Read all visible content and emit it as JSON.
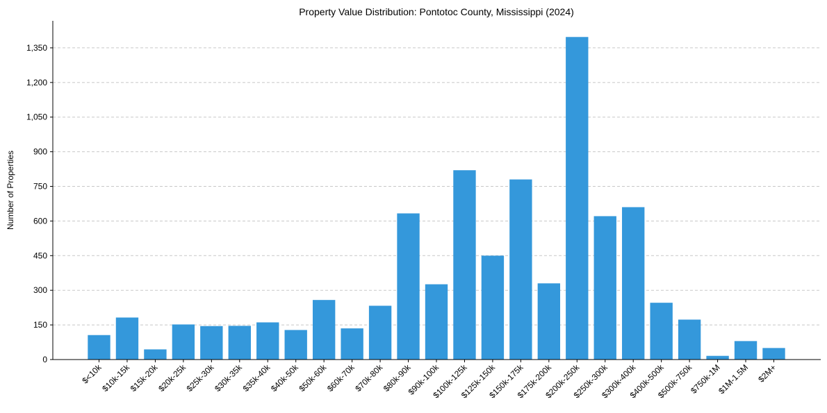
{
  "chart_data": {
    "type": "bar",
    "title": "Property Value Distribution: Pontotoc County, Mississippi (2024)",
    "xlabel": "",
    "ylabel": "Number of Properties",
    "categories": [
      "$<10k",
      "$10k-15k",
      "$15k-20k",
      "$20k-25k",
      "$25k-30k",
      "$30k-35k",
      "$35k-40k",
      "$40k-50k",
      "$50k-60k",
      "$60k-70k",
      "$70k-80k",
      "$80k-90k",
      "$90k-100k",
      "$100k-125k",
      "$125k-150k",
      "$150k-175k",
      "$175k-200k",
      "$200k-250k",
      "$250k-300k",
      "$300k-400k",
      "$400k-500k",
      "$500k-750k",
      "$750k-1M",
      "$1M-1.5M",
      "$2M+"
    ],
    "values": [
      106,
      182,
      44,
      152,
      145,
      146,
      161,
      128,
      258,
      135,
      233,
      633,
      326,
      820,
      450,
      780,
      330,
      1397,
      621,
      660,
      246,
      173,
      16,
      80,
      50
    ],
    "yticks": [
      0,
      150,
      300,
      450,
      600,
      750,
      900,
      1050,
      1200,
      1350
    ],
    "ytick_labels": [
      "0",
      "150",
      "300",
      "450",
      "600",
      "750",
      "900",
      "1,050",
      "1,200",
      "1,350"
    ],
    "ylim": [
      0,
      1467
    ],
    "grid": "horizontal dashed",
    "bar_color": "#3498db"
  }
}
